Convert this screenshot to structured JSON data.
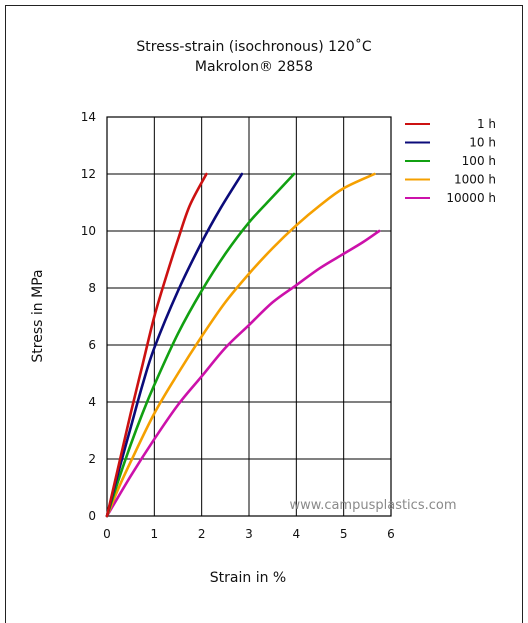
{
  "chart_data": {
    "type": "line",
    "title": "Stress-strain (isochronous) 120˚C",
    "subtitle": "Makrolon® 2858",
    "xlabel": "Strain in %",
    "ylabel": "Stress in MPa",
    "xlim": [
      0,
      6
    ],
    "ylim": [
      0,
      14
    ],
    "x_ticks": [
      "0",
      "1",
      "2",
      "3",
      "4",
      "5",
      "6"
    ],
    "y_ticks": [
      "0",
      "2",
      "4",
      "6",
      "8",
      "10",
      "12",
      "14"
    ],
    "grid": true,
    "legend_position": "right",
    "watermark": "www.campusplastics.com",
    "series": [
      {
        "name": "1 h",
        "color": "#cc1111",
        "points": [
          [
            0,
            0
          ],
          [
            0.25,
            1.8
          ],
          [
            0.5,
            3.6
          ],
          [
            0.75,
            5.3
          ],
          [
            1.0,
            7.0
          ],
          [
            1.25,
            8.4
          ],
          [
            1.5,
            9.7
          ],
          [
            1.75,
            10.9
          ],
          [
            2.1,
            12.0
          ]
        ]
      },
      {
        "name": "10 h",
        "color": "#0b0b7a",
        "points": [
          [
            0,
            0
          ],
          [
            0.25,
            1.6
          ],
          [
            0.5,
            3.1
          ],
          [
            0.75,
            4.6
          ],
          [
            1.0,
            5.9
          ],
          [
            1.5,
            7.9
          ],
          [
            2.0,
            9.6
          ],
          [
            2.4,
            10.8
          ],
          [
            2.85,
            12.0
          ]
        ]
      },
      {
        "name": "100 h",
        "color": "#11a011",
        "points": [
          [
            0,
            0
          ],
          [
            0.25,
            1.3
          ],
          [
            0.5,
            2.5
          ],
          [
            0.75,
            3.6
          ],
          [
            1.0,
            4.6
          ],
          [
            1.5,
            6.4
          ],
          [
            2.0,
            7.9
          ],
          [
            2.5,
            9.2
          ],
          [
            3.0,
            10.3
          ],
          [
            3.5,
            11.2
          ],
          [
            3.95,
            12.0
          ]
        ]
      },
      {
        "name": "1000 h",
        "color": "#f5a000",
        "points": [
          [
            0,
            0
          ],
          [
            0.25,
            1.0
          ],
          [
            0.5,
            1.9
          ],
          [
            1.0,
            3.6
          ],
          [
            1.5,
            5.0
          ],
          [
            2.0,
            6.3
          ],
          [
            2.5,
            7.5
          ],
          [
            3.0,
            8.5
          ],
          [
            3.5,
            9.4
          ],
          [
            4.0,
            10.2
          ],
          [
            4.5,
            10.9
          ],
          [
            5.0,
            11.5
          ],
          [
            5.65,
            12.0
          ]
        ]
      },
      {
        "name": "10000 h",
        "color": "#cc11aa",
        "points": [
          [
            0,
            0
          ],
          [
            0.5,
            1.4
          ],
          [
            1.0,
            2.7
          ],
          [
            1.5,
            3.9
          ],
          [
            2.0,
            4.9
          ],
          [
            2.5,
            5.9
          ],
          [
            3.0,
            6.7
          ],
          [
            3.5,
            7.5
          ],
          [
            4.0,
            8.1
          ],
          [
            4.5,
            8.7
          ],
          [
            5.0,
            9.2
          ],
          [
            5.4,
            9.6
          ],
          [
            5.75,
            10.0
          ]
        ]
      }
    ]
  }
}
